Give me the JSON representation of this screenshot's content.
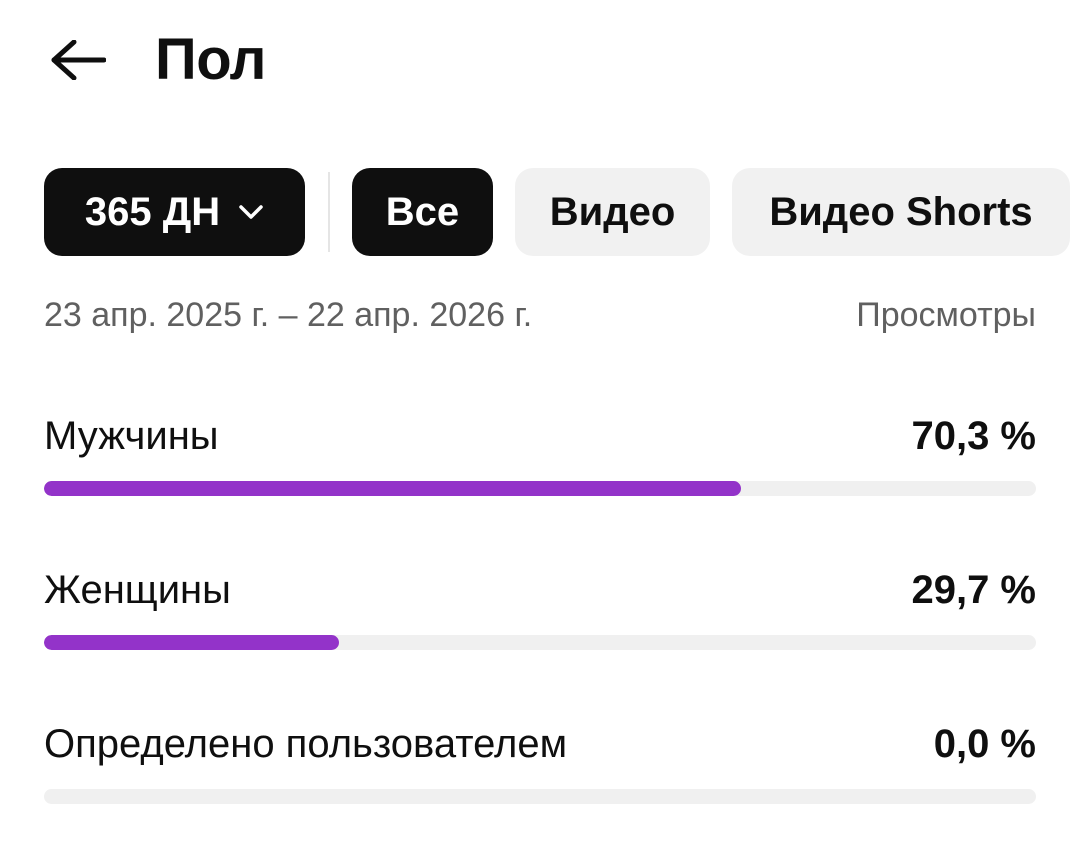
{
  "header": {
    "back_icon": "arrow-left-icon",
    "title": "Пол"
  },
  "filters": {
    "period": {
      "label": "365 ДН",
      "icon": "chevron-down-icon"
    },
    "content_types": [
      {
        "label": "Все",
        "selected": true
      },
      {
        "label": "Видео",
        "selected": false
      },
      {
        "label": "Видео Shorts",
        "selected": false
      }
    ]
  },
  "summary": {
    "date_range": "23 апр. 2025 г. – 22 апр. 2026 г.",
    "metric": "Просмотры"
  },
  "stats": [
    {
      "label": "Мужчины",
      "value_text": "70,3 %",
      "fraction": 0.703
    },
    {
      "label": "Женщины",
      "value_text": "29,7 %",
      "fraction": 0.297
    },
    {
      "label": "Определено пользователем",
      "value_text": "0,0 %",
      "fraction": 0.0
    }
  ],
  "colors": {
    "accent": "#9333c9",
    "track": "#f0f0f0",
    "chip_selected_bg": "#0f0f0f",
    "chip_bg": "#f1f1f1",
    "secondary_text": "#606060"
  }
}
